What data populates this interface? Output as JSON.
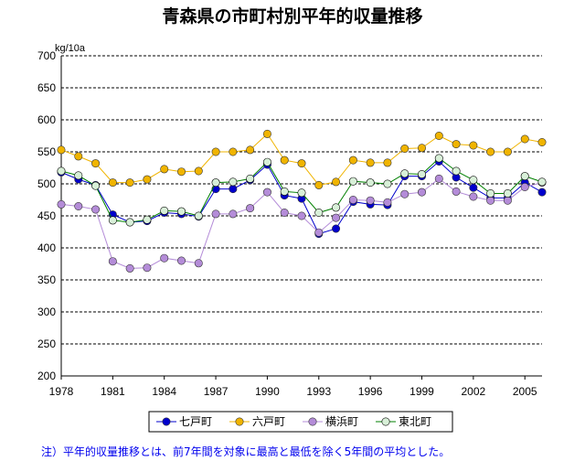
{
  "chart_data": {
    "type": "line",
    "title": "青森県の市町村別平年的収量推移",
    "ylabel": "kg/10a",
    "xlabel": "",
    "ylim": [
      200,
      700
    ],
    "yticks": [
      200,
      250,
      300,
      350,
      400,
      450,
      500,
      550,
      600,
      650,
      700
    ],
    "xlim": [
      1978,
      2006
    ],
    "xtick_labels": [
      "1978",
      "1981",
      "1984",
      "1987",
      "1990",
      "1993",
      "1996",
      "1999",
      "2002",
      "2005"
    ],
    "grid": "horizontal-dashed",
    "x": [
      1978,
      1979,
      1980,
      1981,
      1982,
      1983,
      1984,
      1985,
      1986,
      1987,
      1988,
      1989,
      1990,
      1991,
      1992,
      1993,
      1994,
      1995,
      1996,
      1997,
      1998,
      1999,
      2000,
      2001,
      2002,
      2003,
      2004,
      2005,
      2006
    ],
    "series": [
      {
        "name": "七戸町",
        "color": "#0000cc",
        "values": [
          518,
          507,
          498,
          452,
          440,
          442,
          455,
          453,
          449,
          492,
          492,
          506,
          530,
          482,
          477,
          422,
          430,
          472,
          468,
          467,
          512,
          512,
          535,
          510,
          494,
          478,
          478,
          502,
          487
        ]
      },
      {
        "name": "六戸町",
        "color": "#f0b400",
        "values": [
          553,
          543,
          532,
          502,
          502,
          507,
          523,
          519,
          520,
          550,
          550,
          553,
          578,
          537,
          532,
          498,
          503,
          537,
          533,
          533,
          555,
          556,
          575,
          562,
          560,
          550,
          550,
          570,
          565
        ]
      },
      {
        "name": "横浜町",
        "color": "#b48cd8",
        "values": [
          468,
          465,
          460,
          379,
          368,
          369,
          384,
          380,
          376,
          453,
          453,
          462,
          487,
          455,
          450,
          424,
          447,
          475,
          474,
          471,
          484,
          487,
          508,
          488,
          480,
          474,
          474,
          495,
          502
        ]
      },
      {
        "name": "東北町",
        "color": "#d8f0d8",
        "values": [
          520,
          513,
          497,
          443,
          440,
          444,
          458,
          457,
          450,
          502,
          503,
          508,
          534,
          488,
          486,
          455,
          463,
          504,
          502,
          500,
          516,
          515,
          540,
          520,
          506,
          485,
          485,
          512,
          503
        ]
      }
    ],
    "legend_position": "bottom"
  },
  "footnote": "注）平年的収量推移とは、前7年間を対象に最高と最低を除く5年間の平均とした。"
}
